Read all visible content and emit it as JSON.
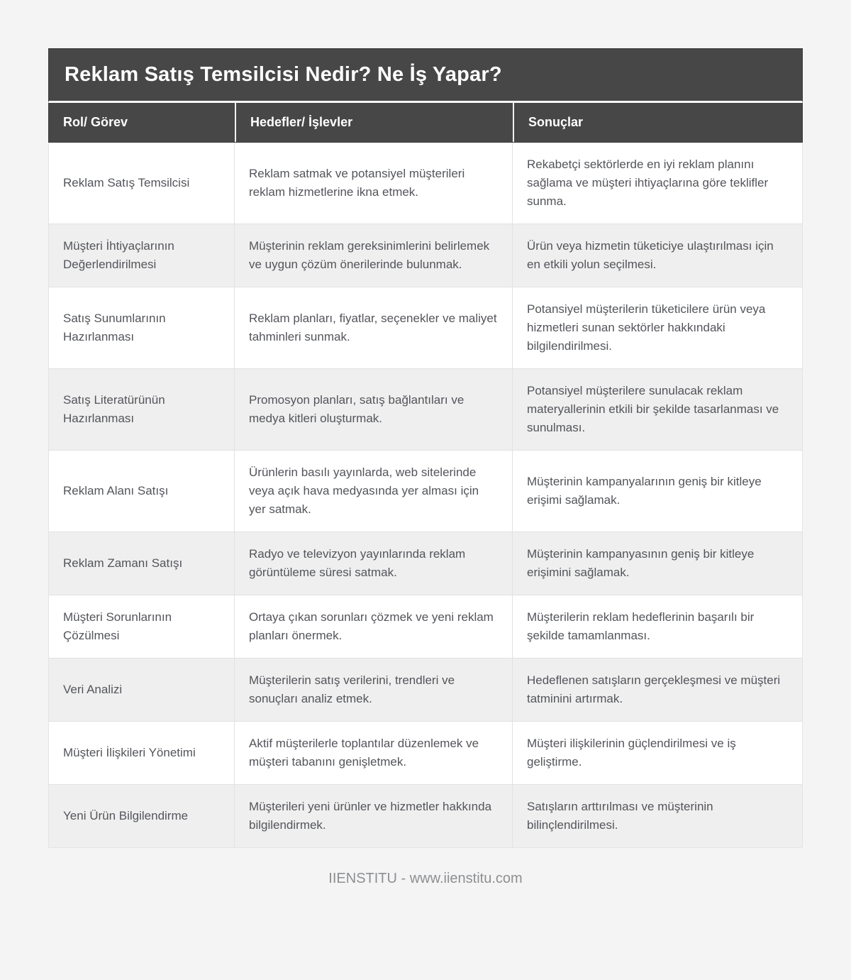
{
  "page": {
    "title": "Reklam Satış Temsilcisi Nedir? Ne İş Yapar?",
    "footer": "IIENSTITU - www.iienstitu.com"
  },
  "colors": {
    "header_background": "#474747",
    "header_text": "#ffffff",
    "row_even_background": "#efefef",
    "row_odd_background": "#ffffff",
    "body_text": "#53555a",
    "page_background": "#f4f4f5",
    "footer_text": "#8d8f91"
  },
  "table": {
    "columns": [
      "Rol/ Görev",
      "Hedefler/ İşlevler",
      "Sonuçlar"
    ],
    "rows": [
      {
        "role": "Reklam Satış Temsilcisi",
        "goal": "Reklam satmak ve potansiyel müşterileri reklam hizmetlerine ikna etmek.",
        "result": "Rekabetçi sektörlerde en iyi reklam planını sağlama ve müşteri ihtiyaçlarına göre teklifler sunma."
      },
      {
        "role": "Müşteri İhtiyaçlarının Değerlendirilmesi",
        "goal": "Müşterinin reklam gereksinimlerini belirlemek ve uygun çözüm önerilerinde bulunmak.",
        "result": "Ürün veya hizmetin tüketiciye ulaştırılması için en etkili yolun seçilmesi."
      },
      {
        "role": "Satış Sunumlarının Hazırlanması",
        "goal": "Reklam planları, fiyatlar, seçenekler ve maliyet tahminleri sunmak.",
        "result": "Potansiyel müşterilerin tüketicilere ürün veya hizmetleri sunan sektörler hakkındaki bilgilendirilmesi."
      },
      {
        "role": "Satış Literatürünün Hazırlanması",
        "goal": "Promosyon planları, satış bağlantıları ve medya kitleri oluşturmak.",
        "result": "Potansiyel müşterilere sunulacak reklam materyallerinin etkili bir şekilde tasarlanması ve sunulması."
      },
      {
        "role": "Reklam Alanı Satışı",
        "goal": "Ürünlerin basılı yayınlarda, web sitelerinde veya açık hava medyasında yer alması için yer satmak.",
        "result": "Müşterinin kampanyalarının geniş bir kitleye erişimi sağlamak."
      },
      {
        "role": "Reklam Zamanı Satışı",
        "goal": "Radyo ve televizyon yayınlarında reklam görüntüleme süresi satmak.",
        "result": "Müşterinin kampanyasının geniş bir kitleye erişimini sağlamak."
      },
      {
        "role": "Müşteri Sorunlarının Çözülmesi",
        "goal": "Ortaya çıkan sorunları çözmek ve yeni reklam planları önermek.",
        "result": "Müşterilerin reklam hedeflerinin başarılı bir şekilde tamamlanması."
      },
      {
        "role": "Veri Analizi",
        "goal": "Müşterilerin satış verilerini, trendleri ve sonuçları analiz etmek.",
        "result": "Hedeflenen satışların gerçekleşmesi ve müşteri tatminini artırmak."
      },
      {
        "role": "Müşteri İlişkileri Yönetimi",
        "goal": "Aktif müşterilerle toplantılar düzenlemek ve müşteri tabanını genişletmek.",
        "result": "Müşteri ilişkilerinin güçlendirilmesi ve iş geliştirme."
      },
      {
        "role": "Yeni Ürün Bilgilendirme",
        "goal": "Müşterileri yeni ürünler ve hizmetler hakkında bilgilendirmek.",
        "result": "Satışların arttırılması ve müşterinin bilinçlendirilmesi."
      }
    ]
  }
}
